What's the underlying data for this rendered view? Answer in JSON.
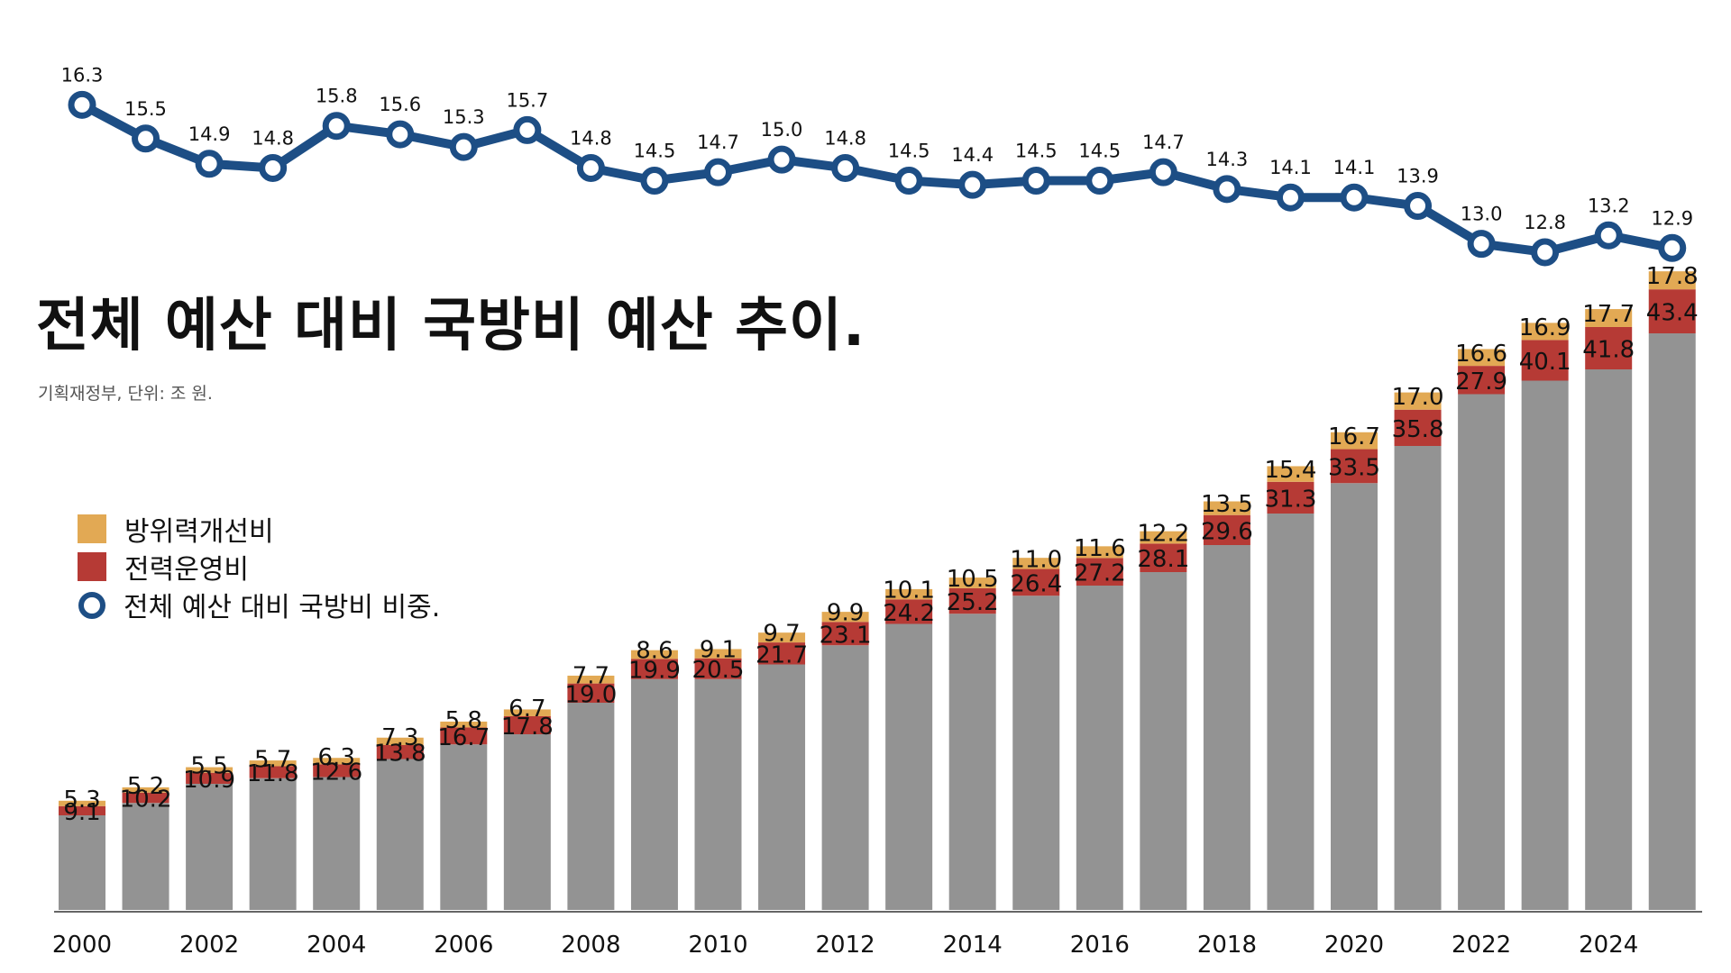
{
  "title": "전체 예산 대비 국방비 예산 추이.",
  "subtitle": "기획재정부, 단위: 조 원.",
  "colors": {
    "gray": "#939393",
    "red": "#b63a35",
    "orange": "#e2a954",
    "line": "#1d4e85"
  },
  "legend": [
    {
      "label": "방위력개선비",
      "color": "#e2a954",
      "icon": "square-swatch"
    },
    {
      "label": "전력운영비",
      "color": "#b63a35",
      "icon": "square-swatch"
    },
    {
      "label": "전체 예산 대비 국방비 비중.",
      "color": "#1d4e85",
      "icon": "ring-marker"
    }
  ],
  "chart_data": {
    "type": "bar",
    "stacked": true,
    "years": [
      2000,
      2001,
      2002,
      2003,
      2004,
      2005,
      2006,
      2007,
      2008,
      2009,
      2010,
      2011,
      2012,
      2013,
      2014,
      2015,
      2016,
      2017,
      2018,
      2019,
      2020,
      2021,
      2022,
      2023,
      2024,
      2025
    ],
    "x_tick_labels": [
      "2000",
      "2002",
      "2004",
      "2006",
      "2008",
      "2010",
      "2012",
      "2014",
      "2016",
      "2018",
      "2020",
      "2022",
      "2024"
    ],
    "series": [
      {
        "name": "total_budget",
        "role": "gray background bar",
        "values": [
          84,
          95,
          112,
          117,
          118,
          134,
          147,
          156,
          184,
          205,
          205,
          218,
          235,
          254,
          263,
          279,
          288,
          300,
          324,
          352,
          379,
          412,
          458,
          470,
          480,
          512
        ]
      },
      {
        "name": "전력운영비",
        "values": [
          9.1,
          10.2,
          10.9,
          11.8,
          12.6,
          13.8,
          16.7,
          17.8,
          19.0,
          19.9,
          20.5,
          21.7,
          23.1,
          24.2,
          25.2,
          26.4,
          27.2,
          28.1,
          29.6,
          31.3,
          33.5,
          35.8,
          27.9,
          40.1,
          41.8,
          43.4
        ]
      },
      {
        "name": "방위력개선비",
        "values": [
          5.3,
          5.2,
          5.5,
          5.7,
          6.3,
          7.3,
          5.8,
          6.7,
          7.7,
          8.6,
          9.1,
          9.7,
          9.9,
          10.1,
          10.5,
          11.0,
          11.6,
          12.2,
          13.5,
          15.4,
          16.7,
          17.0,
          16.6,
          16.9,
          17.7,
          17.8
        ]
      },
      {
        "name": "전체 예산 대비 국방비 비중.",
        "type": "line",
        "values": [
          16.3,
          15.5,
          14.9,
          14.8,
          15.8,
          15.6,
          15.3,
          15.7,
          14.8,
          14.5,
          14.7,
          15.0,
          14.8,
          14.5,
          14.4,
          14.5,
          14.5,
          14.7,
          14.3,
          14.1,
          14.1,
          13.9,
          13.0,
          12.8,
          13.2,
          12.9
        ]
      }
    ],
    "line_labels": [
      "16.3",
      "15.5",
      "14.9",
      "14.8",
      "15.8",
      "15.6",
      "15.3",
      "15.7",
      "14.8",
      "14.5",
      "14.7",
      "15.0",
      "14.8",
      "14.5",
      "14.4",
      "14.5",
      "14.5",
      "14.7",
      "14.3",
      "14.1",
      "14.1",
      "13.9",
      "13.0",
      "12.8",
      "13.2",
      "12.9"
    ],
    "red_labels": [
      "9.1",
      "10.2",
      "10.9",
      "11.8",
      "12.6",
      "13.8",
      "16.7",
      "17.8",
      "19.0",
      "19.9",
      "20.5",
      "21.7",
      "23.1",
      "24.2",
      "25.2",
      "26.4",
      "27.2",
      "28.1",
      "29.6",
      "31.3",
      "33.5",
      "35.8",
      "27.9",
      "40.1",
      "41.8",
      "43.4"
    ],
    "orange_labels": [
      "5.3",
      "5.2",
      "5.5",
      "5.7",
      "6.3",
      "7.3",
      "5.8",
      "6.7",
      "7.7",
      "8.6",
      "9.1",
      "9.7",
      "9.9",
      "10.1",
      "10.5",
      "11.0",
      "11.6",
      "12.2",
      "13.5",
      "15.4",
      "16.7",
      "17.0",
      "16.6",
      "16.9",
      "17.7",
      "17.8"
    ],
    "line_ylim": [
      12.5,
      16.5
    ],
    "grid": false,
    "legend_position": "middle-left"
  }
}
